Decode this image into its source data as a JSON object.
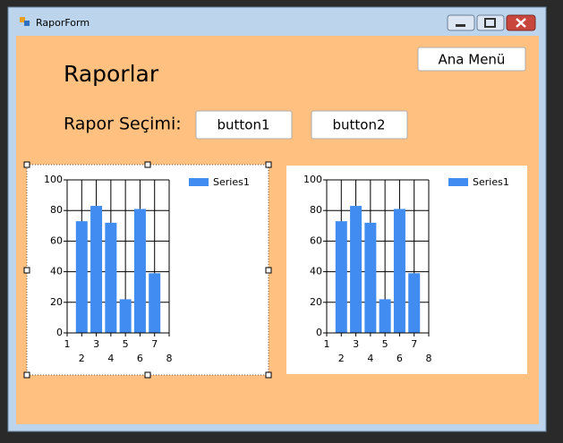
{
  "window": {
    "title": "RaporForm"
  },
  "heading": "Raporlar",
  "menu_button": "Ana Menü",
  "selection_label": "Rapor Seçimi:",
  "buttons": [
    "button1",
    "button2"
  ],
  "charts": [
    {
      "type": "bar",
      "legend": "Series1",
      "color": "#418cf0",
      "x": [
        2,
        3,
        4,
        5,
        6,
        7
      ],
      "values": [
        73,
        83,
        72,
        22,
        81,
        39
      ],
      "xlim": [
        1,
        8
      ],
      "xticks": [
        1,
        2,
        3,
        4,
        5,
        6,
        7,
        8
      ],
      "ylim": [
        0,
        100
      ],
      "yticks": [
        0,
        20,
        40,
        60,
        80,
        100
      ],
      "grid": true
    },
    {
      "type": "bar",
      "legend": "Series1",
      "color": "#418cf0",
      "x": [
        2,
        3,
        4,
        5,
        6,
        7
      ],
      "values": [
        73,
        83,
        72,
        22,
        81,
        39
      ],
      "xlim": [
        1,
        8
      ],
      "xticks": [
        1,
        2,
        3,
        4,
        5,
        6,
        7,
        8
      ],
      "ylim": [
        0,
        100
      ],
      "yticks": [
        0,
        20,
        40,
        60,
        80,
        100
      ],
      "grid": true
    }
  ]
}
